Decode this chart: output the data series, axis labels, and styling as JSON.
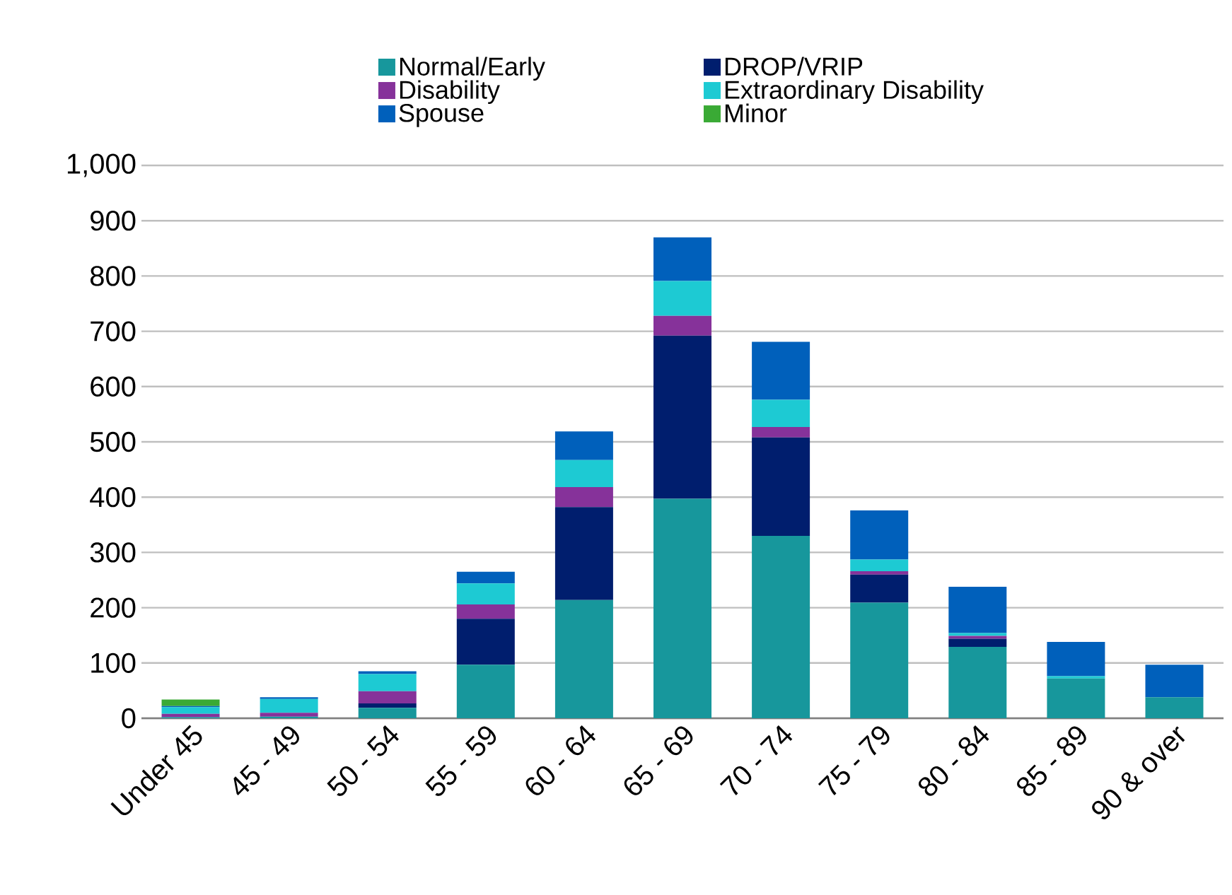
{
  "chart_data": {
    "type": "bar",
    "stacked": true,
    "categories": [
      "Under 45",
      "45 - 49",
      "50 - 54",
      "55 - 59",
      "60 - 64",
      "65 - 69",
      "70 - 74",
      "75 - 79",
      "80 - 84",
      "85 - 89",
      "90 & over"
    ],
    "series": [
      {
        "name": "Normal/Early",
        "color": "#17979c",
        "values": [
          2,
          3,
          19,
          97,
          214,
          397,
          330,
          209,
          129,
          72,
          38
        ]
      },
      {
        "name": "DROP/VRIP",
        "color": "#001e6e",
        "values": [
          0,
          0,
          8,
          83,
          168,
          295,
          178,
          51,
          15,
          0,
          0
        ]
      },
      {
        "name": "Disability",
        "color": "#86329a",
        "values": [
          6,
          7,
          22,
          26,
          36,
          36,
          19,
          6,
          5,
          0,
          0
        ]
      },
      {
        "name": "Extraordinary Disability",
        "color": "#1dcad3",
        "values": [
          12,
          25,
          31,
          38,
          49,
          63,
          49,
          21,
          5,
          4,
          0
        ]
      },
      {
        "name": "Spouse",
        "color": "#0060bb",
        "values": [
          2,
          3,
          5,
          21,
          52,
          79,
          105,
          89,
          84,
          62,
          59
        ]
      },
      {
        "name": "Minor",
        "color": "#3aaa35",
        "values": [
          12,
          0,
          0,
          0,
          0,
          0,
          0,
          0,
          0,
          0,
          0
        ]
      }
    ],
    "ylim": [
      0,
      1000
    ],
    "yticks": [
      0,
      100,
      200,
      300,
      400,
      500,
      600,
      700,
      800,
      900,
      {
        "value": 1000,
        "label": "1,000"
      }
    ],
    "grid": "y",
    "legend": "top"
  }
}
